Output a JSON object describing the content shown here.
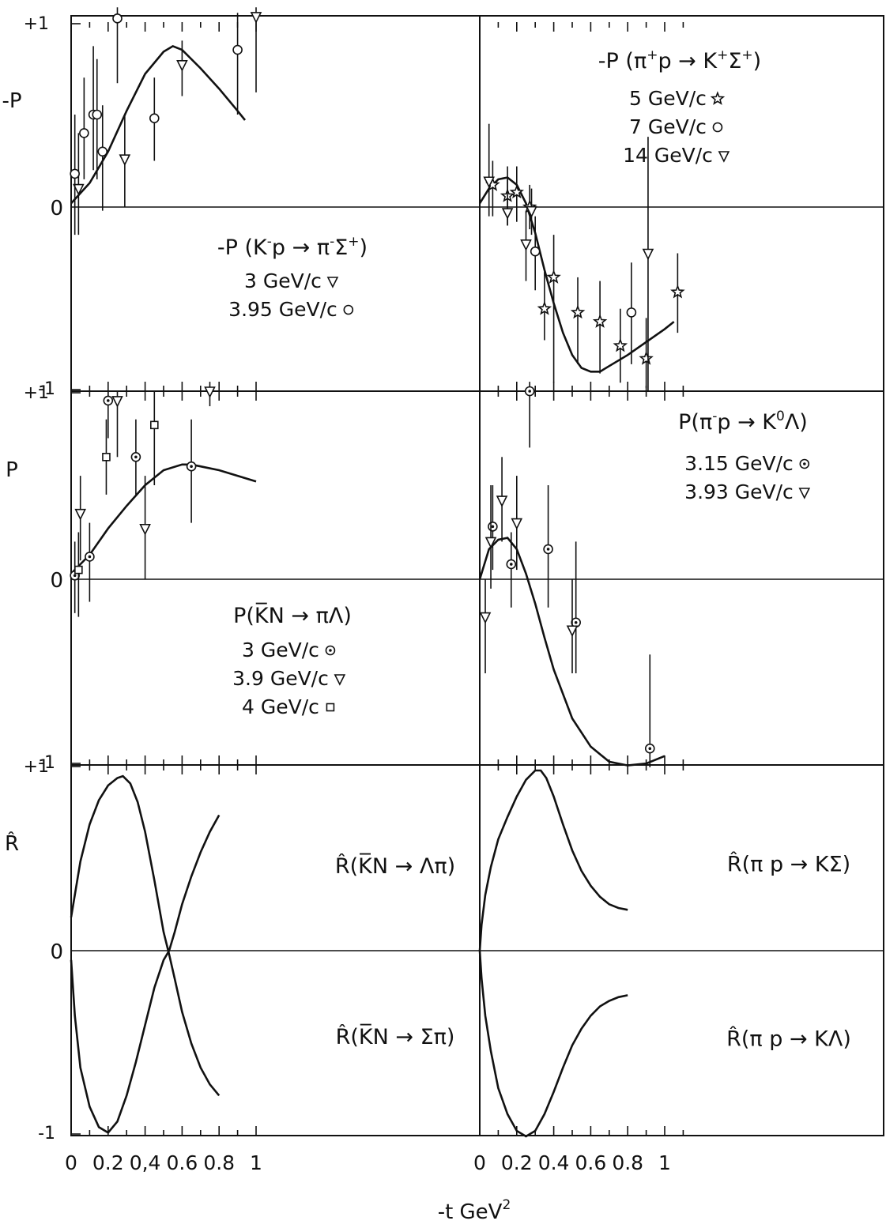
{
  "chart_data": {
    "type": "scatter",
    "xlabel": "-t GeV",
    "xlabel_sup": "2",
    "grid": false,
    "panels": [
      {
        "id": "tl",
        "row": 0,
        "col": 0,
        "ylabel": "-P",
        "ylim": [
          -1,
          1
        ],
        "xlim": [
          0,
          1.0
        ],
        "ytick_labels": {
          "top": "+1",
          "zero": "0",
          "bottom": "-1"
        },
        "title_parts": [
          "-P (K",
          "-",
          "p → π",
          "-",
          "Σ",
          "+",
          ")"
        ],
        "legend": [
          {
            "label": "3 GeV/c",
            "marker": "triangle"
          },
          {
            "label": "3.95 GeV/c",
            "marker": "circle"
          }
        ],
        "series": [
          {
            "name": "3 GeV/c",
            "marker": "triangle",
            "points": [
              {
                "x": 0.04,
                "y": 0.1,
                "lo": -0.15,
                "hi": 0.4
              },
              {
                "x": 0.29,
                "y": 0.26,
                "lo": 0.0,
                "hi": 0.5
              },
              {
                "x": 0.6,
                "y": 0.77,
                "lo": 0.6,
                "hi": 0.9
              },
              {
                "x": 1.0,
                "y": 1.03,
                "lo": 0.62,
                "hi": 1.08
              }
            ]
          },
          {
            "name": "3.95 GeV/c",
            "marker": "circle",
            "points": [
              {
                "x": 0.02,
                "y": 0.18,
                "lo": -0.15,
                "hi": 0.5
              },
              {
                "x": 0.07,
                "y": 0.4,
                "lo": 0.15,
                "hi": 0.7
              },
              {
                "x": 0.12,
                "y": 0.5,
                "lo": 0.2,
                "hi": 0.87
              },
              {
                "x": 0.14,
                "y": 0.5,
                "lo": 0.15,
                "hi": 0.8
              },
              {
                "x": 0.17,
                "y": 0.3,
                "lo": -0.02,
                "hi": 0.55
              },
              {
                "x": 0.25,
                "y": 1.02,
                "lo": 0.67,
                "hi": 1.08
              },
              {
                "x": 0.45,
                "y": 0.48,
                "lo": 0.25,
                "hi": 0.7
              },
              {
                "x": 0.9,
                "y": 0.85,
                "lo": 0.5,
                "hi": 1.05
              }
            ]
          }
        ],
        "curve": {
          "x": [
            0,
            0.1,
            0.2,
            0.3,
            0.4,
            0.5,
            0.55,
            0.6,
            0.7,
            0.8,
            0.9,
            0.94
          ],
          "y": [
            0.02,
            0.13,
            0.3,
            0.52,
            0.72,
            0.84,
            0.87,
            0.85,
            0.75,
            0.64,
            0.52,
            0.47
          ]
        }
      },
      {
        "id": "tr",
        "row": 0,
        "col": 1,
        "ylim": [
          -1,
          1
        ],
        "xlim": [
          0,
          1.1
        ],
        "title_parts": [
          "-P (π",
          "+",
          "p → K",
          "+",
          "Σ",
          "+",
          ")"
        ],
        "legend": [
          {
            "label": "5 GeV/c",
            "marker": "star"
          },
          {
            "label": "7 GeV/c",
            "marker": "circle"
          },
          {
            "label": "14 GeV/c",
            "marker": "triangle"
          }
        ],
        "series": [
          {
            "name": "5 GeV/c",
            "marker": "star",
            "points": [
              {
                "x": 0.07,
                "y": 0.12,
                "lo": -0.05,
                "hi": 0.25
              },
              {
                "x": 0.15,
                "y": 0.06,
                "lo": -0.1,
                "hi": 0.22
              },
              {
                "x": 0.2,
                "y": 0.08,
                "lo": -0.08,
                "hi": 0.22
              },
              {
                "x": 0.27,
                "y": 0.0,
                "lo": -0.12,
                "hi": 0.12
              },
              {
                "x": 0.35,
                "y": -0.55,
                "lo": -0.72,
                "hi": -0.35
              },
              {
                "x": 0.4,
                "y": -0.38,
                "lo": -0.95,
                "hi": -0.15
              },
              {
                "x": 0.53,
                "y": -0.57,
                "lo": -0.85,
                "hi": -0.38
              },
              {
                "x": 0.65,
                "y": -0.62,
                "lo": -0.9,
                "hi": -0.4
              },
              {
                "x": 0.76,
                "y": -0.75,
                "lo": -0.95,
                "hi": -0.55
              },
              {
                "x": 0.9,
                "y": -0.82,
                "lo": -0.98,
                "hi": -0.6
              },
              {
                "x": 1.07,
                "y": -0.46,
                "lo": -0.68,
                "hi": -0.25
              }
            ]
          },
          {
            "name": "7 GeV/c",
            "marker": "circle",
            "points": [
              {
                "x": 0.3,
                "y": -0.24,
                "lo": -0.45,
                "hi": -0.05
              },
              {
                "x": 0.82,
                "y": -0.57,
                "lo": -0.85,
                "hi": -0.3
              }
            ]
          },
          {
            "name": "14 GeV/c",
            "marker": "triangle",
            "points": [
              {
                "x": 0.05,
                "y": 0.14,
                "lo": -0.05,
                "hi": 0.45
              },
              {
                "x": 0.15,
                "y": -0.03,
                "lo": -0.1,
                "hi": 0.15
              },
              {
                "x": 0.28,
                "y": -0.02,
                "lo": -0.15,
                "hi": 0.1
              },
              {
                "x": 0.25,
                "y": -0.2,
                "lo": -0.4,
                "hi": -0.02
              },
              {
                "x": 0.91,
                "y": -0.25,
                "lo": -1.0,
                "hi": 0.38
              }
            ]
          }
        ],
        "curve": {
          "x": [
            0,
            0.05,
            0.1,
            0.15,
            0.2,
            0.25,
            0.3,
            0.35,
            0.4,
            0.45,
            0.5,
            0.55,
            0.6,
            0.65,
            0.7,
            0.8,
            0.9,
            1.0,
            1.05
          ],
          "y": [
            0.02,
            0.1,
            0.15,
            0.16,
            0.12,
            0.02,
            -0.14,
            -0.34,
            -0.52,
            -0.68,
            -0.8,
            -0.87,
            -0.89,
            -0.89,
            -0.86,
            -0.8,
            -0.73,
            -0.66,
            -0.62
          ]
        }
      },
      {
        "id": "ml",
        "row": 1,
        "col": 0,
        "ylabel": "P",
        "ylim": [
          -1,
          1
        ],
        "xlim": [
          0,
          1.0
        ],
        "ytick_labels": {
          "top": "+1",
          "zero": "0",
          "bottom": "-1"
        },
        "title_parts": [
          "P(",
          "K̅",
          "N → πΛ)"
        ],
        "legend": [
          {
            "label": "3 GeV/c",
            "marker": "circle-dot"
          },
          {
            "label": "3.9 GeV/c",
            "marker": "triangle"
          },
          {
            "label": "4 GeV/c",
            "marker": "square"
          }
        ],
        "series": [
          {
            "name": "3 GeV/c",
            "marker": "circle-dot",
            "points": [
              {
                "x": 0.02,
                "y": 0.02,
                "lo": -0.18,
                "hi": 0.2
              },
              {
                "x": 0.1,
                "y": 0.12,
                "lo": -0.12,
                "hi": 0.3
              },
              {
                "x": 0.2,
                "y": 0.95,
                "lo": 0.75,
                "hi": 1.0
              },
              {
                "x": 0.35,
                "y": 0.65,
                "lo": 0.45,
                "hi": 0.85
              },
              {
                "x": 0.65,
                "y": 0.6,
                "lo": 0.3,
                "hi": 0.85
              }
            ]
          },
          {
            "name": "3.9 GeV/c",
            "marker": "triangle",
            "points": [
              {
                "x": 0.05,
                "y": 0.35,
                "lo": 0.1,
                "hi": 0.55
              },
              {
                "x": 0.25,
                "y": 0.95,
                "lo": 0.65,
                "hi": 1.0
              },
              {
                "x": 0.4,
                "y": 0.27,
                "lo": 0.0,
                "hi": 0.55
              },
              {
                "x": 0.75,
                "y": 1.0,
                "lo": 0.92,
                "hi": 1.05
              }
            ]
          },
          {
            "name": "4 GeV/c",
            "marker": "square",
            "points": [
              {
                "x": 0.04,
                "y": 0.05,
                "lo": -0.2,
                "hi": 0.25
              },
              {
                "x": 0.19,
                "y": 0.65,
                "lo": 0.45,
                "hi": 0.85
              },
              {
                "x": 0.45,
                "y": 0.82,
                "lo": 0.5,
                "hi": 1.0
              }
            ]
          }
        ],
        "curve": {
          "x": [
            0,
            0.1,
            0.2,
            0.3,
            0.4,
            0.5,
            0.6,
            0.65,
            0.7,
            0.8,
            0.9,
            1.0
          ],
          "y": [
            0.03,
            0.13,
            0.27,
            0.39,
            0.5,
            0.58,
            0.61,
            0.61,
            0.6,
            0.58,
            0.55,
            0.52
          ]
        }
      },
      {
        "id": "mr",
        "row": 1,
        "col": 1,
        "ylim": [
          -1,
          1
        ],
        "xlim": [
          0,
          1.1
        ],
        "title_parts": [
          "P(π",
          "-",
          "p → K",
          "0",
          "Λ)"
        ],
        "legend": [
          {
            "label": "3.15 GeV/c",
            "marker": "circle-dot"
          },
          {
            "label": "3.93 GeV/c",
            "marker": "triangle"
          }
        ],
        "series": [
          {
            "name": "3.15 GeV/c",
            "marker": "circle-dot",
            "points": [
              {
                "x": 0.07,
                "y": 0.28,
                "lo": 0.05,
                "hi": 0.5
              },
              {
                "x": 0.17,
                "y": 0.08,
                "lo": -0.15,
                "hi": 0.25
              },
              {
                "x": 0.27,
                "y": 1.0,
                "lo": 0.7,
                "hi": 1.05
              },
              {
                "x": 0.37,
                "y": 0.16,
                "lo": -0.15,
                "hi": 0.5
              },
              {
                "x": 0.52,
                "y": -0.23,
                "lo": -0.5,
                "hi": 0.2
              },
              {
                "x": 0.92,
                "y": -0.9,
                "lo": -1.0,
                "hi": -0.4
              }
            ]
          },
          {
            "name": "3.93 GeV/c",
            "marker": "triangle",
            "points": [
              {
                "x": 0.03,
                "y": -0.2,
                "lo": -0.5,
                "hi": 0.0
              },
              {
                "x": 0.06,
                "y": 0.2,
                "lo": -0.05,
                "hi": 0.5
              },
              {
                "x": 0.12,
                "y": 0.42,
                "lo": 0.2,
                "hi": 0.65
              },
              {
                "x": 0.2,
                "y": 0.3,
                "lo": 0.05,
                "hi": 0.55
              },
              {
                "x": 0.5,
                "y": -0.27,
                "lo": -0.5,
                "hi": 0.0
              }
            ]
          }
        ],
        "curve": {
          "x": [
            0,
            0.05,
            0.1,
            0.15,
            0.2,
            0.25,
            0.3,
            0.35,
            0.4,
            0.5,
            0.6,
            0.7,
            0.8,
            0.9,
            1.0
          ],
          "y": [
            0.0,
            0.16,
            0.21,
            0.22,
            0.16,
            0.03,
            -0.13,
            -0.31,
            -0.48,
            -0.74,
            -0.89,
            -0.97,
            -0.99,
            -0.98,
            -0.94
          ]
        }
      },
      {
        "id": "bl",
        "row": 2,
        "col": 0,
        "ylabel": "R̂",
        "ylim": [
          -1,
          1
        ],
        "xlim": [
          0,
          1.0
        ],
        "ytick_labels": {
          "top": "+1",
          "zero": "0",
          "bottom": "-1"
        },
        "labels": [
          {
            "text": "R̂(K̅N → Λπ)",
            "at_x": 0.65,
            "at_y": 0.46
          },
          {
            "text": "R̂(K̅N  →  Σπ)",
            "at_x": 0.65,
            "at_y": -0.46
          }
        ],
        "curves": [
          {
            "x": [
              0,
              0.05,
              0.1,
              0.15,
              0.2,
              0.25,
              0.28,
              0.32,
              0.36,
              0.4,
              0.45,
              0.5,
              0.53,
              0.56,
              0.6,
              0.65,
              0.7,
              0.75,
              0.8
            ],
            "y": [
              0.18,
              0.48,
              0.68,
              0.81,
              0.89,
              0.93,
              0.94,
              0.9,
              0.8,
              0.64,
              0.38,
              0.1,
              -0.02,
              -0.15,
              -0.33,
              -0.5,
              -0.63,
              -0.72,
              -0.78
            ]
          },
          {
            "x": [
              0,
              0.02,
              0.05,
              0.1,
              0.15,
              0.2,
              0.25,
              0.3,
              0.35,
              0.4,
              0.45,
              0.5,
              0.53,
              0.56,
              0.6,
              0.65,
              0.7,
              0.75,
              0.8
            ],
            "y": [
              -0.05,
              -0.35,
              -0.63,
              -0.84,
              -0.95,
              -0.98,
              -0.92,
              -0.78,
              -0.6,
              -0.4,
              -0.2,
              -0.05,
              0.0,
              0.1,
              0.25,
              0.4,
              0.53,
              0.64,
              0.73
            ]
          }
        ]
      },
      {
        "id": "br",
        "row": 2,
        "col": 1,
        "ylim": [
          -1,
          1
        ],
        "xlim": [
          0,
          1.1
        ],
        "labels": [
          {
            "text": "R̂(π p → KΣ)",
            "at_x": 0.85,
            "at_y": 0.47
          },
          {
            "text": "R̂(π p  →  KΛ)",
            "at_x": 0.85,
            "at_y": -0.47
          }
        ],
        "curves": [
          {
            "x": [
              0.0,
              0.01,
              0.03,
              0.06,
              0.1,
              0.15,
              0.2,
              0.25,
              0.3,
              0.33,
              0.36,
              0.4,
              0.45,
              0.5,
              0.55,
              0.6,
              0.65,
              0.7,
              0.75,
              0.8
            ],
            "y": [
              0.0,
              0.14,
              0.3,
              0.45,
              0.6,
              0.72,
              0.83,
              0.92,
              0.97,
              0.97,
              0.93,
              0.83,
              0.68,
              0.54,
              0.43,
              0.35,
              0.29,
              0.25,
              0.23,
              0.22
            ]
          },
          {
            "x": [
              0.0,
              0.01,
              0.03,
              0.06,
              0.1,
              0.15,
              0.2,
              0.25,
              0.3,
              0.35,
              0.4,
              0.45,
              0.5,
              0.55,
              0.6,
              0.65,
              0.7,
              0.75,
              0.8
            ],
            "y": [
              0.0,
              -0.15,
              -0.35,
              -0.54,
              -0.74,
              -0.88,
              -0.97,
              -1.0,
              -0.97,
              -0.88,
              -0.76,
              -0.63,
              -0.51,
              -0.42,
              -0.35,
              -0.3,
              -0.27,
              -0.25,
              -0.24
            ]
          }
        ]
      }
    ],
    "xticks": {
      "left": [
        "0",
        "0.2",
        "0,4",
        "0.6",
        "0.8",
        "1"
      ],
      "right": [
        "0",
        "0.2",
        "0.4",
        "0.6",
        "0.8",
        "1"
      ]
    }
  }
}
